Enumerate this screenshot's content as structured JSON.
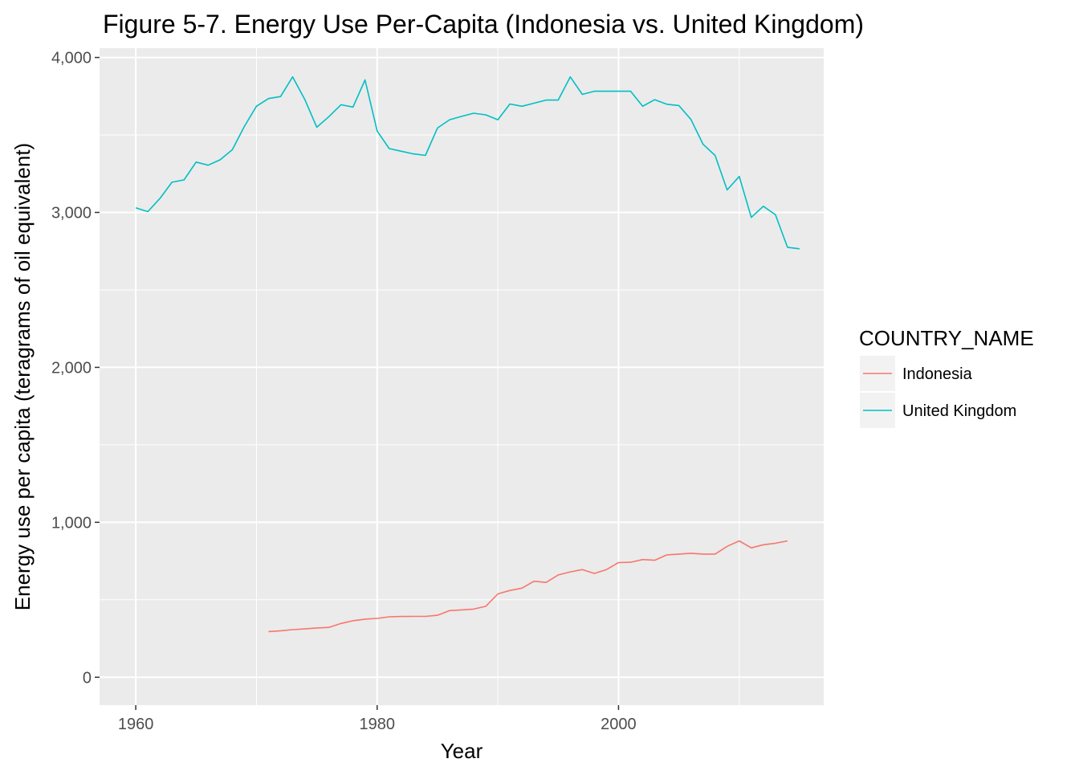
{
  "chart_data": {
    "type": "line",
    "title": "Figure 5-7. Energy Use Per-Capita (Indonesia vs. United Kingdom)",
    "xlabel": "Year",
    "ylabel": "Energy use per capita (teragrams of oil equivalent)",
    "xlim": [
      1957,
      2017
    ],
    "ylim": [
      -180,
      4060
    ],
    "x_ticks": [
      1960,
      1980,
      2000
    ],
    "x_tick_labels": [
      "1960",
      "1980",
      "2000"
    ],
    "y_ticks": [
      0,
      1000,
      2000,
      3000,
      4000
    ],
    "y_tick_labels": [
      "0",
      "1,000",
      "2,000",
      "3,000",
      "4,000"
    ],
    "grid": true,
    "legend": {
      "title": "COUNTRY_NAME",
      "position": "right"
    },
    "series": [
      {
        "name": "Indonesia",
        "color": "#f8766d",
        "x": [
          1971,
          1972,
          1973,
          1974,
          1975,
          1976,
          1977,
          1978,
          1979,
          1980,
          1981,
          1982,
          1983,
          1984,
          1985,
          1986,
          1987,
          1988,
          1989,
          1990,
          1991,
          1992,
          1993,
          1994,
          1995,
          1996,
          1997,
          1998,
          1999,
          2000,
          2001,
          2002,
          2003,
          2004,
          2005,
          2006,
          2007,
          2008,
          2009,
          2010,
          2011,
          2012,
          2013,
          2014
        ],
        "y": [
          295,
          300,
          307,
          312,
          318,
          322,
          347,
          365,
          375,
          380,
          390,
          392,
          393,
          393,
          400,
          430,
          435,
          440,
          458,
          538,
          560,
          575,
          620,
          612,
          660,
          680,
          695,
          670,
          695,
          740,
          742,
          760,
          755,
          790,
          795,
          800,
          795,
          795,
          845,
          880,
          835,
          855,
          865,
          880
        ]
      },
      {
        "name": "United Kingdom",
        "color": "#00bfc4",
        "x": [
          1960,
          1961,
          1962,
          1963,
          1964,
          1965,
          1966,
          1967,
          1968,
          1969,
          1970,
          1971,
          1972,
          1973,
          1974,
          1975,
          1976,
          1977,
          1978,
          1979,
          1980,
          1981,
          1982,
          1983,
          1984,
          1985,
          1986,
          1987,
          1988,
          1989,
          1990,
          1991,
          1992,
          1993,
          1994,
          1995,
          1996,
          1997,
          1998,
          1999,
          2000,
          2001,
          2002,
          2003,
          2004,
          2005,
          2006,
          2007,
          2008,
          2009,
          2010,
          2011,
          2012,
          2013,
          2014,
          2015
        ],
        "y": [
          3030,
          3005,
          3090,
          3195,
          3210,
          3325,
          3305,
          3340,
          3405,
          3555,
          3685,
          3735,
          3748,
          3875,
          3730,
          3550,
          3618,
          3695,
          3680,
          3855,
          3525,
          3412,
          3395,
          3378,
          3368,
          3545,
          3598,
          3620,
          3640,
          3630,
          3598,
          3700,
          3685,
          3705,
          3725,
          3725,
          3875,
          3762,
          3782,
          3782,
          3782,
          3782,
          3685,
          3728,
          3698,
          3690,
          3600,
          3440,
          3368,
          3145,
          3232,
          2968,
          3040,
          2985,
          2775,
          2765
        ]
      }
    ]
  }
}
